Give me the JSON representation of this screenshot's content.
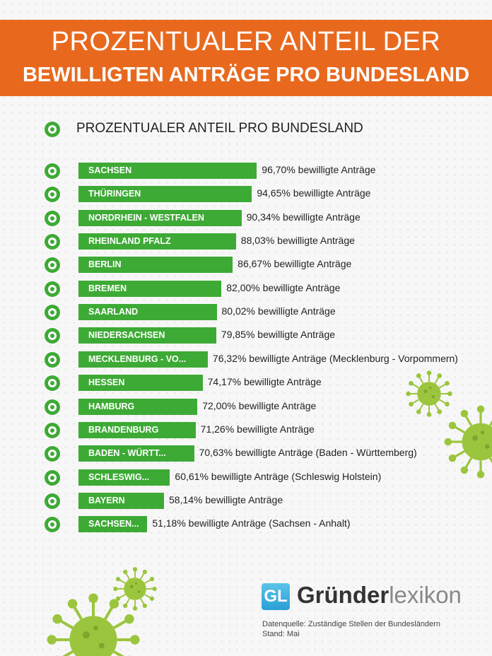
{
  "header": {
    "title_line1": "PROZENTUALER ANTEIL DER",
    "title_line2": "BEWILLIGTEN ANTRÄGE PRO BUNDESLAND"
  },
  "colors": {
    "banner": "#e8691e",
    "bar": "#3daa35",
    "virus": "#9bc53d"
  },
  "chart_data": {
    "type": "bar",
    "orientation": "horizontal",
    "title": "PROZENTUALER ANTEIL PRO BUNDESLAND",
    "categories": [
      "SACHSEN",
      "THÜRINGEN",
      "NORDRHEIN - WESTFALEN",
      "RHEINLAND PFALZ",
      "BERLIN",
      "BREMEN",
      "SAARLAND",
      "NIEDERSACHSEN",
      "MECKLENBURG - VO...",
      "HESSEN",
      "HAMBURG",
      "BRANDENBURG",
      "BADEN - WÜRTT...",
      "SCHLESWIG...",
      "BAYERN",
      "SACHSEN..."
    ],
    "values": [
      96.7,
      94.65,
      90.34,
      88.03,
      86.67,
      82.0,
      80.02,
      79.85,
      76.32,
      74.17,
      72.0,
      71.26,
      70.63,
      60.61,
      58.14,
      51.18
    ],
    "labels": [
      "96,70% bewilligte Anträge",
      "94,65% bewilligte Anträge",
      "90,34% bewilligte Anträge",
      "88,03% bewilligte Anträge",
      "86,67% bewilligte Anträge",
      "82,00% bewilligte Anträge",
      "80,02% bewilligte Anträge",
      "79,85% bewilligte Anträge",
      "76,32% bewilligte Anträge (Mecklenburg - Vorpommern)",
      "74,17% bewilligte Anträge",
      "72,00% bewilligte Anträge",
      "71,26% bewilligte Anträge",
      "70,63% bewilligte Anträge (Baden - Württemberg)",
      "60,61% bewilligte Anträge (Schleswig Holstein)",
      "58,14% bewilligte Anträge",
      "51,18% bewilligte Anträge (Sachsen - Anhalt)"
    ],
    "unit": "%",
    "grid": false
  },
  "footer": {
    "logo_mark": "GL",
    "brand_bold": "Gründer",
    "brand_light": "lexikon",
    "source": "Datenquelle: Zuständige Stellen der Bundesländern",
    "stand": "Stand: Mai"
  }
}
